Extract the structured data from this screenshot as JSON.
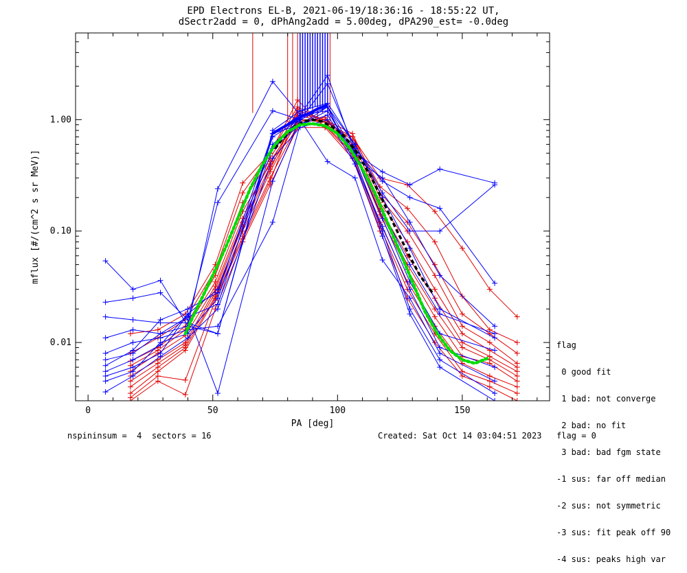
{
  "header": {
    "line1": "EPD Electrons EL-B, 2021-06-19/18:36:16 - 18:55:22 UT,",
    "line2": "dSectr2add = 0, dPhAng2add = 5.00deg, dPA290_est=  -0.0deg"
  },
  "legend": {
    "title": "flag",
    "items": [
      " 0 good fit",
      " 1 bad: not converge",
      " 2 bad: no fit",
      " 3 bad: bad fgm state",
      "-1 sus: far off median",
      "-2 sus: not symmetric",
      "-3 sus: fit peak off 90",
      "-4 sus: peaks high var"
    ]
  },
  "footer": {
    "left": "nspininsum =  4  sectors = 16",
    "right": "Created: Sat Oct 14 03:04:51 2023   flag = 0"
  },
  "colors": {
    "blue": "#0000ff",
    "red": "#e00000",
    "green": "#00dd00",
    "black": "#000000"
  },
  "chart_data": {
    "type": "line",
    "xlabel": "PA [deg]",
    "ylabel": "mflux [#/(cm^2 s sr MeV)]",
    "xlim": [
      -5,
      185
    ],
    "ylim": [
      0.003,
      6.0
    ],
    "yscale": "log",
    "xticks": [
      0,
      50,
      100,
      150
    ],
    "yticks": [
      0.01,
      0.1,
      1.0
    ],
    "ytick_labels": [
      "0.01",
      "0.10",
      "1.00"
    ],
    "blue_pa": [
      7,
      18,
      29,
      40,
      52,
      74,
      85,
      96,
      107,
      118,
      129,
      141,
      163
    ],
    "red_pa": [
      17,
      28,
      39,
      51,
      62,
      73,
      84,
      95,
      106,
      117,
      128,
      139,
      150,
      161,
      172
    ],
    "blue_series": [
      [
        0.054,
        0.03,
        0.036,
        0.014,
        0.24,
        2.2,
        1.1,
        2.5,
        0.5,
        0.34,
        0.26,
        0.36,
        0.27
      ],
      [
        0.023,
        0.025,
        0.028,
        0.016,
        0.18,
        1.2,
        1.0,
        2.1,
        0.55,
        0.28,
        0.2,
        0.16,
        0.034
      ],
      [
        0.017,
        0.016,
        0.015,
        0.015,
        0.012,
        0.8,
        1.2,
        1.4,
        0.6,
        0.22,
        0.1,
        0.1,
        0.26
      ],
      [
        0.011,
        0.013,
        0.012,
        0.014,
        0.012,
        0.75,
        0.9,
        1.2,
        0.45,
        0.3,
        0.12,
        0.04,
        0.014
      ],
      [
        0.008,
        0.01,
        0.011,
        0.013,
        0.014,
        0.12,
        0.9,
        1.3,
        0.6,
        0.2,
        0.07,
        0.02,
        0.011
      ],
      [
        0.007,
        0.008,
        0.012,
        0.017,
        0.022,
        0.7,
        1.0,
        1.3,
        0.5,
        0.15,
        0.05,
        0.018,
        0.012
      ],
      [
        0.0062,
        0.0085,
        0.016,
        0.02,
        0.028,
        0.75,
        1.1,
        1.2,
        0.48,
        0.13,
        0.035,
        0.012,
        0.0085
      ],
      [
        0.0055,
        0.007,
        0.0095,
        0.018,
        0.03,
        0.6,
        1.0,
        1.3,
        0.4,
        0.11,
        0.03,
        0.009,
        0.006
      ],
      [
        0.005,
        0.006,
        0.008,
        0.018,
        0.0035,
        0.28,
        1.0,
        0.42,
        0.3,
        0.055,
        0.025,
        0.008,
        0.0045
      ],
      [
        0.0045,
        0.0055,
        0.01,
        0.012,
        0.025,
        0.55,
        0.9,
        1.1,
        0.45,
        0.1,
        0.02,
        0.007,
        0.0035
      ],
      [
        0.0036,
        0.005,
        0.0075,
        0.011,
        0.02,
        0.45,
        0.85,
        1.0,
        0.4,
        0.09,
        0.018,
        0.006,
        0.003
      ]
    ],
    "red_series": [
      [
        0.012,
        0.013,
        0.018,
        0.05,
        0.27,
        0.5,
        1.5,
        0.85,
        0.7,
        0.3,
        0.26,
        0.15,
        0.07,
        0.03,
        0.017
      ],
      [
        0.008,
        0.011,
        0.016,
        0.045,
        0.22,
        0.5,
        1.3,
        0.95,
        0.7,
        0.25,
        0.16,
        0.08,
        0.026,
        0.013,
        0.01
      ],
      [
        0.0068,
        0.009,
        0.014,
        0.04,
        0.18,
        0.45,
        1.2,
        1.0,
        0.75,
        0.22,
        0.12,
        0.05,
        0.018,
        0.012,
        0.008
      ],
      [
        0.0062,
        0.0085,
        0.013,
        0.035,
        0.15,
        0.4,
        1.1,
        0.95,
        0.7,
        0.2,
        0.1,
        0.04,
        0.014,
        0.01,
        0.0065
      ],
      [
        0.0055,
        0.008,
        0.0115,
        0.032,
        0.13,
        0.42,
        1.0,
        1.0,
        0.65,
        0.18,
        0.08,
        0.03,
        0.012,
        0.0085,
        0.006
      ],
      [
        0.005,
        0.007,
        0.01,
        0.03,
        0.12,
        0.38,
        0.95,
        1.05,
        0.6,
        0.16,
        0.06,
        0.025,
        0.01,
        0.0075,
        0.0055
      ],
      [
        0.0045,
        0.0065,
        0.0095,
        0.028,
        0.11,
        0.36,
        1.15,
        1.0,
        0.58,
        0.15,
        0.05,
        0.02,
        0.009,
        0.007,
        0.005
      ],
      [
        0.004,
        0.006,
        0.009,
        0.026,
        0.1,
        0.34,
        1.0,
        0.95,
        0.55,
        0.14,
        0.045,
        0.017,
        0.0075,
        0.0065,
        0.0045
      ],
      [
        0.0035,
        0.0055,
        0.0085,
        0.025,
        0.09,
        0.3,
        0.9,
        0.9,
        0.5,
        0.12,
        0.035,
        0.014,
        0.0065,
        0.005,
        0.004
      ],
      [
        0.0032,
        0.005,
        0.0046,
        0.024,
        0.085,
        0.28,
        1.25,
        0.88,
        0.48,
        0.11,
        0.03,
        0.012,
        0.0055,
        0.0045,
        0.0035
      ],
      [
        0.003,
        0.0045,
        0.0034,
        0.02,
        0.08,
        0.26,
        0.85,
        0.85,
        0.45,
        0.1,
        0.025,
        0.01,
        0.005,
        0.004,
        0.003
      ]
    ],
    "red_spikes_pa": [
      66,
      80,
      82,
      84,
      86,
      88,
      90,
      92,
      94,
      97
    ],
    "red_spike_bottom": [
      1.15,
      0.95,
      1.05,
      1.0,
      1.1,
      1.05,
      1.1,
      1.0,
      1.15,
      0.95
    ],
    "blue_spikes_pa": [
      85,
      86,
      87,
      88,
      89,
      90,
      91,
      92,
      93,
      94,
      95,
      96
    ],
    "blue_spike_bottom": [
      1.05,
      1.1,
      1.15,
      1.2,
      1.25,
      1.25,
      1.3,
      1.3,
      1.25,
      1.2,
      1.3,
      1.35
    ],
    "median_blue": {
      "x": [
        74,
        78,
        82,
        85,
        89,
        92,
        96
      ],
      "y": [
        0.75,
        0.85,
        0.95,
        1.05,
        1.15,
        1.25,
        1.35
      ]
    },
    "fit_black": {
      "x": [
        75,
        79,
        83,
        87,
        90,
        94,
        98,
        103,
        108,
        113,
        118,
        123,
        128,
        133,
        138
      ],
      "y": [
        0.55,
        0.72,
        0.87,
        0.97,
        1.0,
        0.96,
        0.86,
        0.7,
        0.5,
        0.32,
        0.19,
        0.11,
        0.065,
        0.04,
        0.028
      ]
    },
    "fit_green": {
      "x": [
        39,
        42,
        46,
        50,
        55,
        60,
        65,
        70,
        75,
        80,
        85,
        90,
        95,
        100,
        105,
        110,
        115,
        120,
        125,
        130,
        135,
        140,
        145,
        150,
        155,
        160
      ],
      "y": [
        0.012,
        0.017,
        0.026,
        0.04,
        0.07,
        0.13,
        0.24,
        0.4,
        0.6,
        0.78,
        0.9,
        0.92,
        0.88,
        0.75,
        0.55,
        0.36,
        0.22,
        0.12,
        0.065,
        0.035,
        0.019,
        0.012,
        0.0085,
        0.007,
        0.0065,
        0.0072
      ]
    }
  }
}
